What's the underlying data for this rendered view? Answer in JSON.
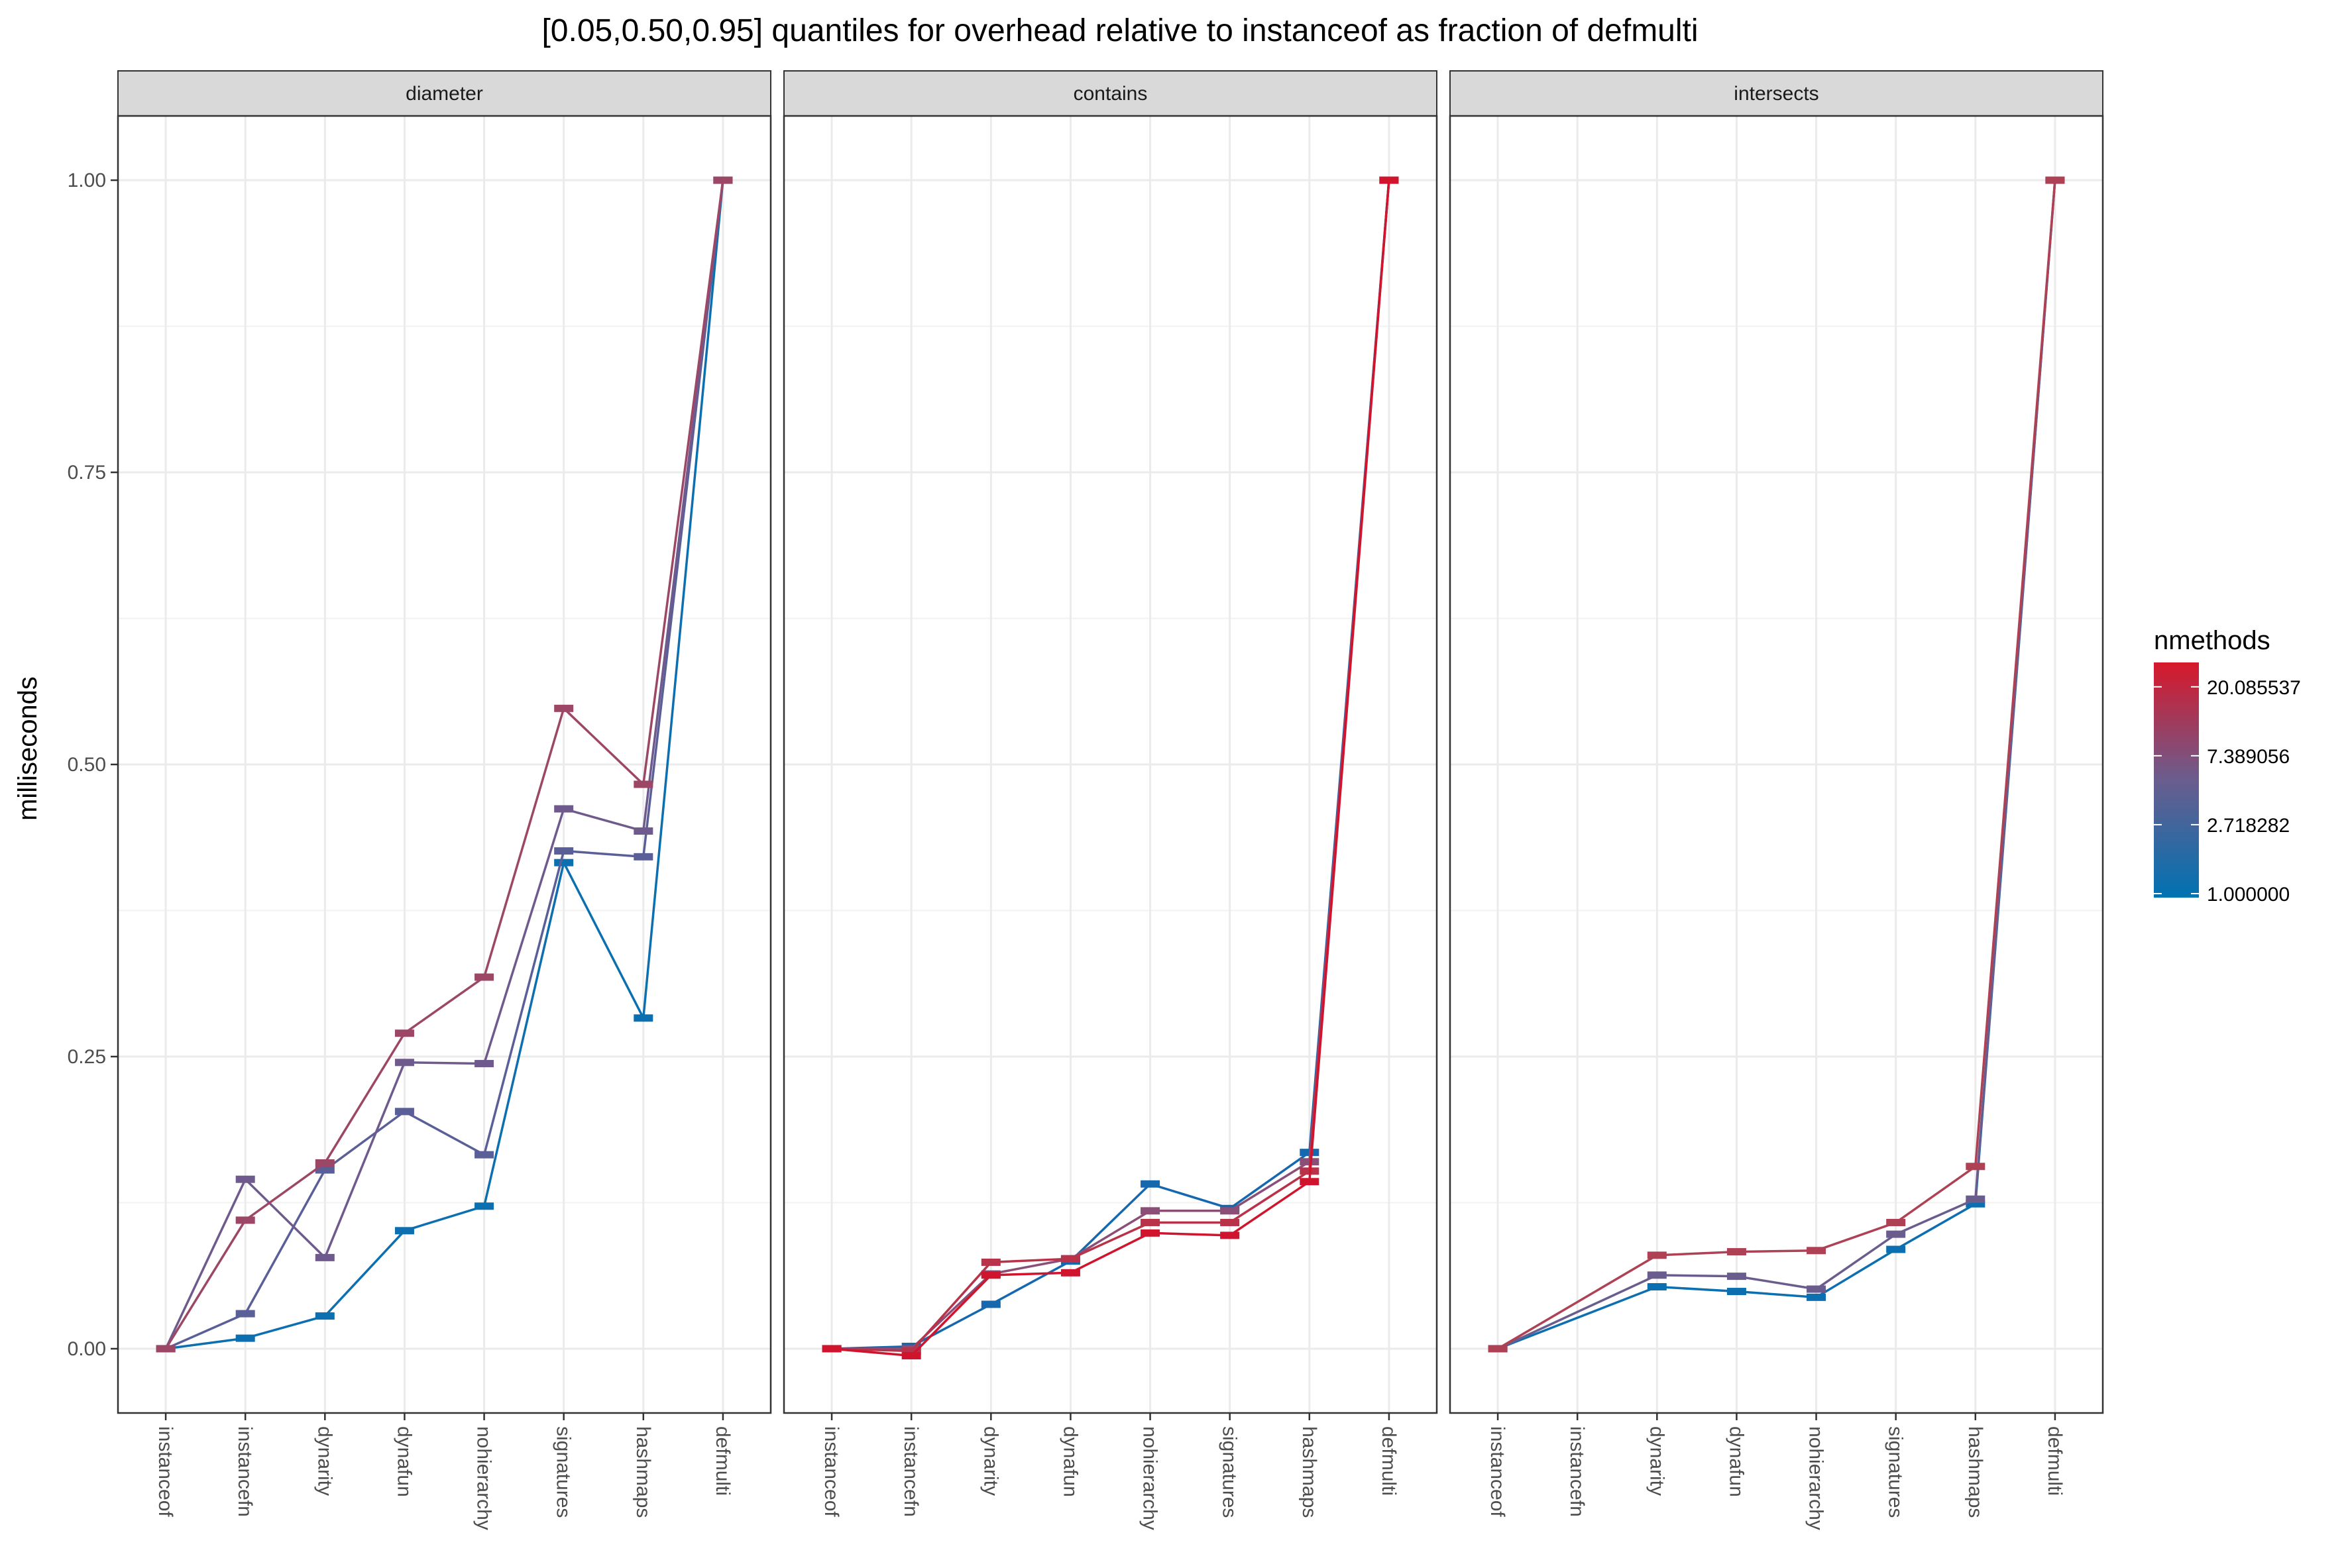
{
  "chart_data": {
    "type": "line",
    "title": "[0.05,0.50,0.95] quantiles for overhead relative to instanceof as fraction of defmulti",
    "ylabel": "milliseconds",
    "xlabel": "",
    "ylim": [
      -0.055,
      1.055
    ],
    "yticks": [
      0.0,
      0.25,
      0.5,
      0.75,
      1.0
    ],
    "ytick_labels": [
      "0.00",
      "0.25",
      "0.50",
      "0.75",
      "1.00"
    ],
    "grid": true,
    "categories": [
      "instanceof",
      "instancefn",
      "dynarity",
      "dynafun",
      "nohierarchy",
      "signatures",
      "hashmaps",
      "defmulti"
    ],
    "legend": {
      "title": "nmethods",
      "placement": "right",
      "labels": [
        "20.085537",
        "7.389056",
        "2.718282",
        "1.000000"
      ],
      "values": [
        20.085537,
        7.389056,
        2.718282,
        1.0
      ],
      "low_color": "#0072B2",
      "mid_color": "#6A5D8E",
      "high_color": "#D7182A"
    },
    "panels": [
      {
        "name": "diameter",
        "series": [
          {
            "nmethods": 1,
            "color": "#0B6FB0",
            "values": [
              0.0,
              0.009,
              0.028,
              0.101,
              0.122,
              0.416,
              0.283,
              1.0
            ]
          },
          {
            "nmethods": 2,
            "color": "#5A5F98",
            "values": [
              0.0,
              0.03,
              0.153,
              0.203,
              0.166,
              0.426,
              0.421,
              1.0
            ]
          },
          {
            "nmethods": 3,
            "color": "#6E5A8C",
            "values": [
              0.0,
              0.145,
              0.078,
              0.245,
              0.244,
              0.462,
              0.443,
              1.0
            ]
          },
          {
            "nmethods": 5,
            "color": "#9C4766",
            "values": [
              0.0,
              0.11,
              0.159,
              0.27,
              0.318,
              0.548,
              0.483,
              1.0
            ]
          }
        ]
      },
      {
        "name": "contains",
        "series": [
          {
            "nmethods": 1,
            "color": "#1668AE",
            "values": [
              0.0,
              0.002,
              0.038,
              0.075,
              0.141,
              0.12,
              0.168,
              1.0
            ]
          },
          {
            "nmethods": 3,
            "color": "#8A4E77",
            "values": [
              0.0,
              0.0,
              0.064,
              0.077,
              0.118,
              0.118,
              0.16,
              1.0
            ]
          },
          {
            "nmethods": 7,
            "color": "#B83249",
            "values": [
              0.0,
              -0.002,
              0.074,
              0.077,
              0.108,
              0.108,
              0.152,
              1.0
            ]
          },
          {
            "nmethods": 20,
            "color": "#D0142E",
            "values": [
              0.0,
              -0.006,
              0.063,
              0.065,
              0.099,
              0.097,
              0.143,
              1.0
            ]
          }
        ]
      },
      {
        "name": "intersects",
        "series": [
          {
            "nmethods": 1,
            "color": "#0B6FB0",
            "values": [
              0.0,
              null,
              0.053,
              0.049,
              0.044,
              0.085,
              0.124,
              1.0
            ]
          },
          {
            "nmethods": 3,
            "color": "#6A5D8E",
            "values": [
              0.0,
              null,
              0.063,
              0.062,
              0.051,
              0.098,
              0.128,
              1.0
            ]
          },
          {
            "nmethods": 7,
            "color": "#AF4155",
            "values": [
              0.0,
              null,
              0.08,
              0.083,
              0.084,
              0.108,
              0.156,
              1.0
            ]
          }
        ]
      }
    ]
  }
}
